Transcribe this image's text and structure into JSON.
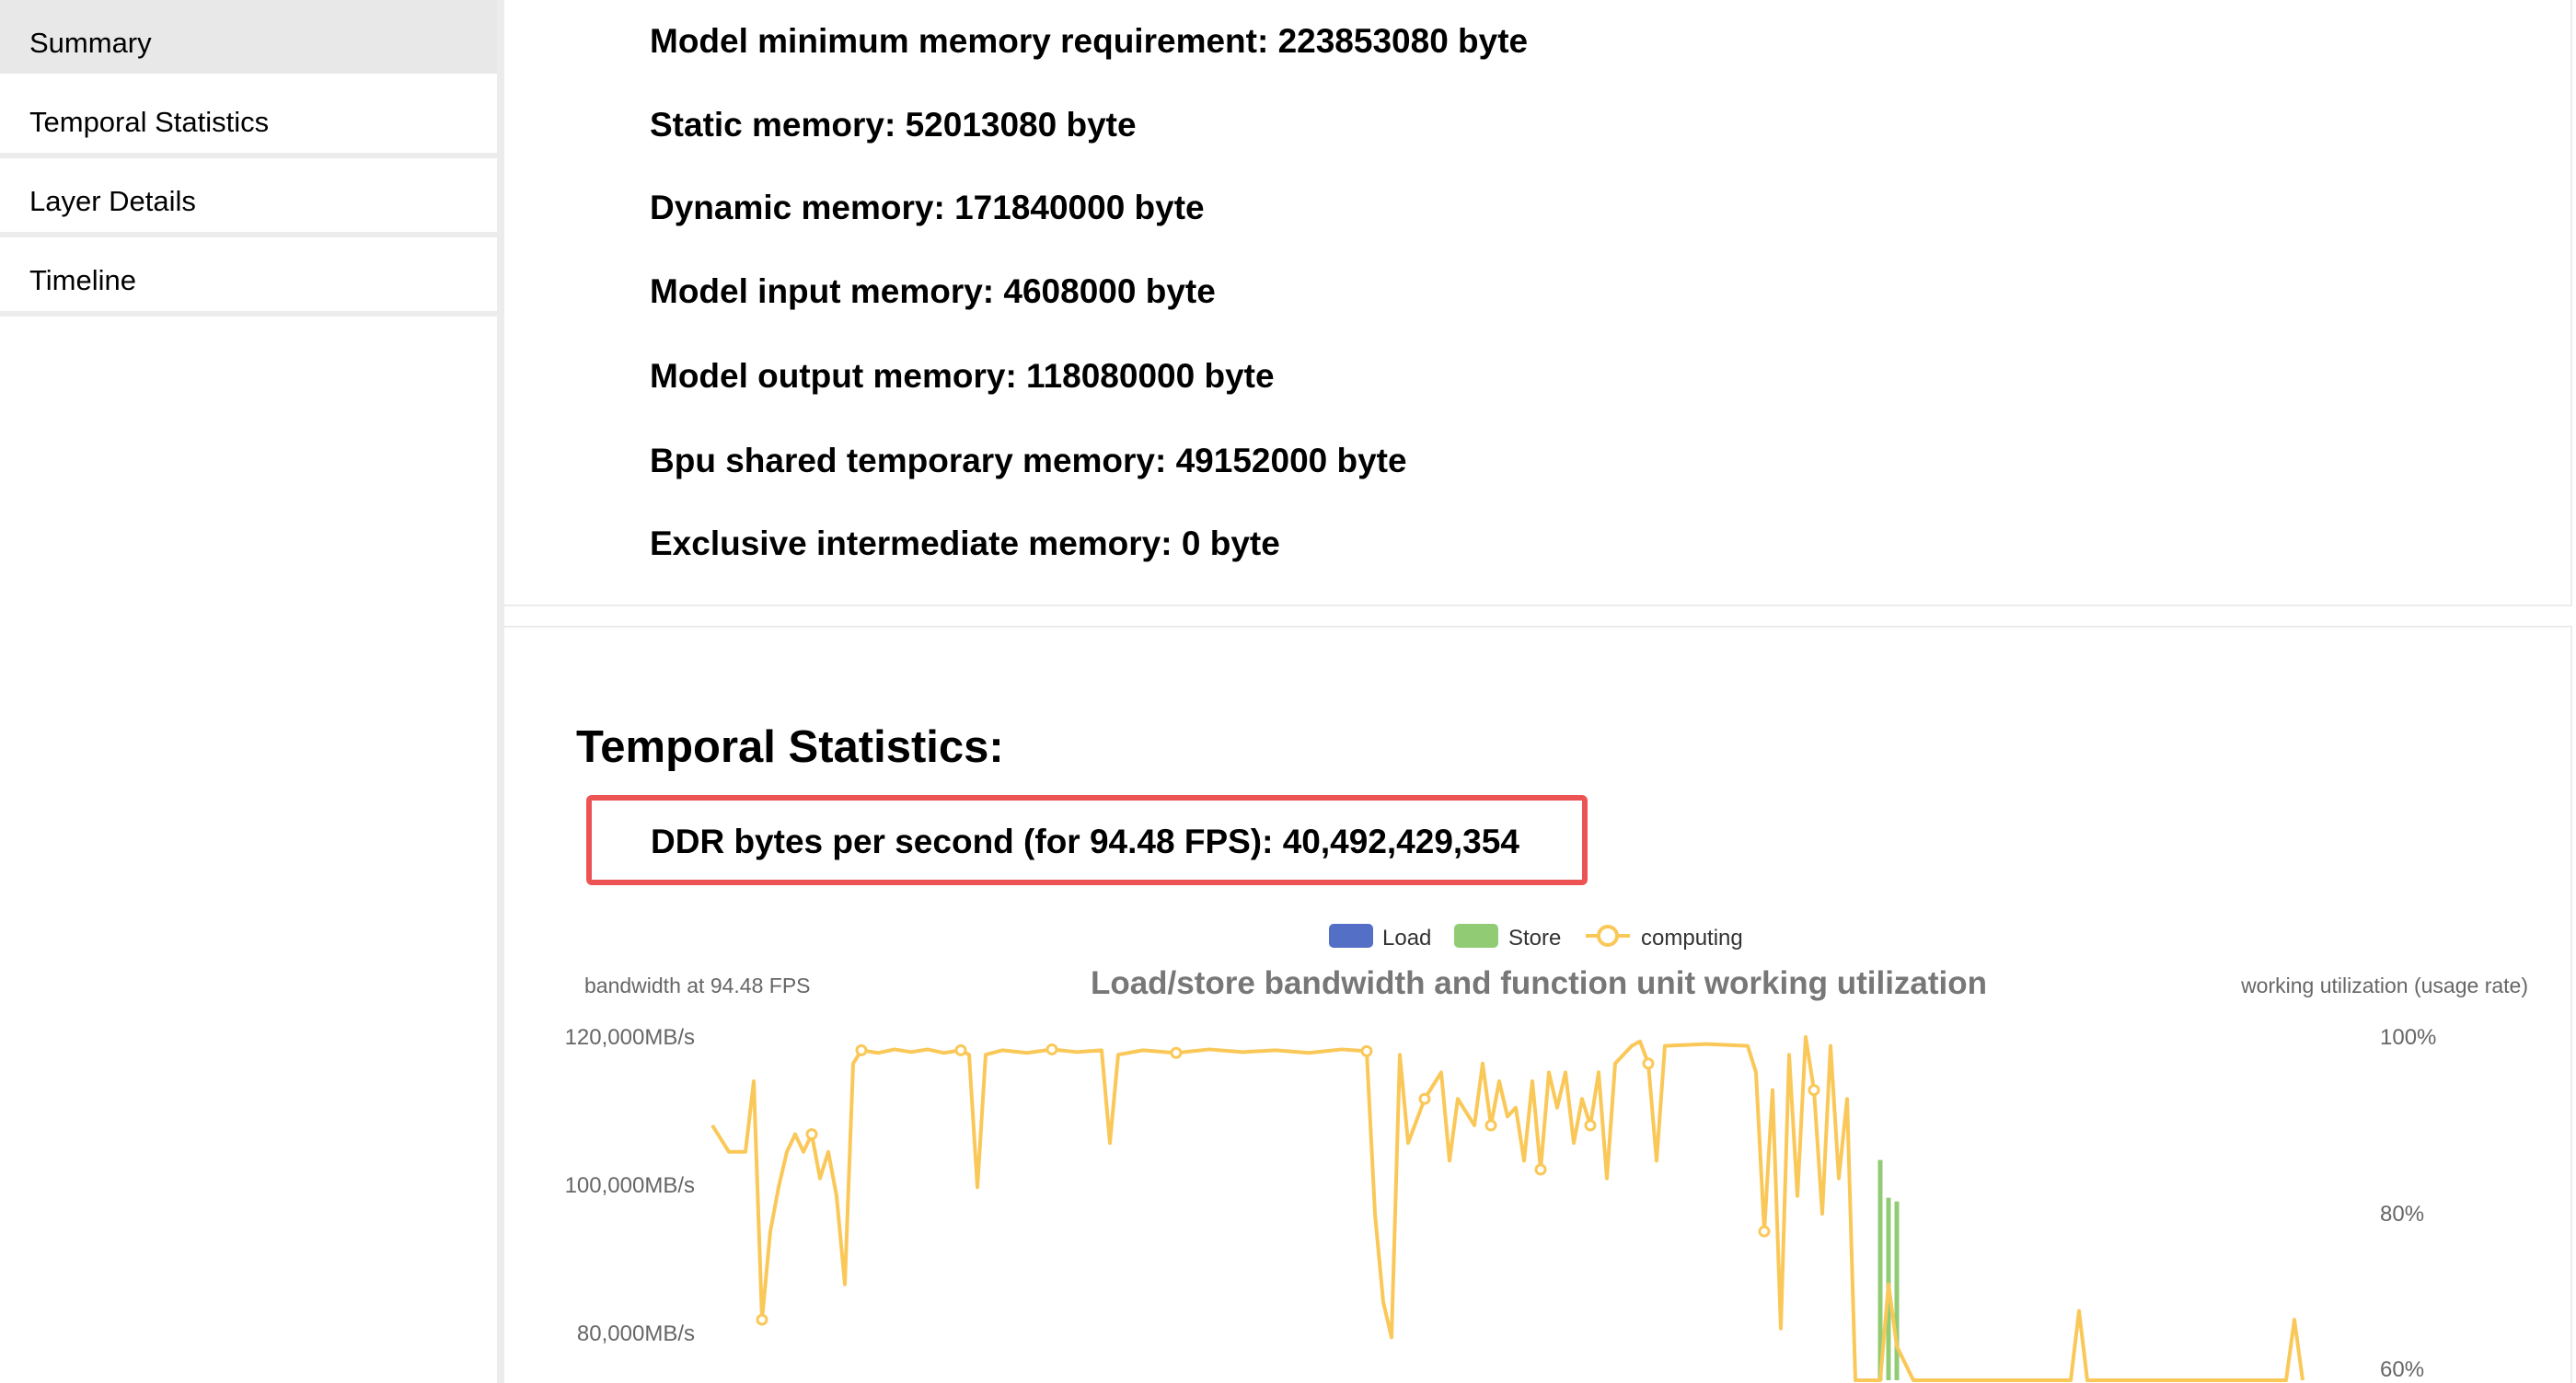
{
  "sidebar": {
    "items": [
      {
        "label": "Summary",
        "active": true
      },
      {
        "label": "Temporal Statistics"
      },
      {
        "label": "Layer Details"
      },
      {
        "label": "Timeline"
      }
    ]
  },
  "summary": {
    "lines": [
      "Model minimum memory requirement: 223853080 byte",
      "Static memory: 52013080 byte",
      "Dynamic memory: 171840000 byte",
      "Model input memory: 4608000 byte",
      "Model output memory: 118080000 byte",
      "Bpu shared temporary memory: 49152000 byte",
      "Exclusive intermediate memory: 0 byte"
    ]
  },
  "temporal": {
    "title": "Temporal Statistics:",
    "ddr_text": "DDR bytes per second (for 94.48 FPS): 40,492,429,354",
    "highlight_color": "#ec5454"
  },
  "chart_data": {
    "type": "bar+line",
    "title": "Load/store bandwidth and function unit working utilization",
    "ylabel_left": "bandwidth at 94.48 FPS",
    "ylabel_right": "working utilization (usage rate)",
    "left_ticks": [
      "120,000MB/s",
      "100,000MB/s",
      "80,000MB/s"
    ],
    "right_ticks": [
      "100%",
      "80%",
      "60%"
    ],
    "left_range": [
      80000,
      120000
    ],
    "right_range": [
      60,
      100
    ],
    "legend": [
      {
        "name": "Load",
        "color": "#5470c6"
      },
      {
        "name": "Store",
        "color": "#91cc75"
      },
      {
        "name": "computing",
        "color": "#fac858"
      }
    ],
    "store": {
      "x": [
        141,
        142,
        143
      ],
      "values": [
        103400,
        98300,
        97800
      ]
    },
    "computing": {
      "points": [
        [
          0,
          90
        ],
        [
          2,
          87
        ],
        [
          4,
          87
        ],
        [
          5,
          95
        ],
        [
          6,
          68
        ],
        [
          7,
          78
        ],
        [
          8,
          83
        ],
        [
          9,
          87
        ],
        [
          10,
          89
        ],
        [
          11,
          87
        ],
        [
          12,
          89
        ],
        [
          13,
          84
        ],
        [
          14,
          87
        ],
        [
          15,
          82
        ],
        [
          16,
          72
        ],
        [
          17,
          97
        ],
        [
          18,
          98.5
        ],
        [
          20,
          98.2
        ],
        [
          22,
          98.6
        ],
        [
          24,
          98.3
        ],
        [
          26,
          98.6
        ],
        [
          28,
          98.2
        ],
        [
          30,
          98.5
        ],
        [
          31,
          98
        ],
        [
          32,
          83
        ],
        [
          33,
          98
        ],
        [
          35,
          98.5
        ],
        [
          38,
          98.2
        ],
        [
          41,
          98.6
        ],
        [
          44,
          98.3
        ],
        [
          47,
          98.5
        ],
        [
          48,
          88
        ],
        [
          49,
          98
        ],
        [
          52,
          98.5
        ],
        [
          56,
          98.2
        ],
        [
          60,
          98.6
        ],
        [
          64,
          98.3
        ],
        [
          68,
          98.5
        ],
        [
          72,
          98.2
        ],
        [
          76,
          98.6
        ],
        [
          79,
          98.4
        ],
        [
          80,
          80
        ],
        [
          81,
          70
        ],
        [
          82,
          66
        ],
        [
          83,
          98
        ],
        [
          84,
          88
        ],
        [
          86,
          93
        ],
        [
          88,
          96
        ],
        [
          89,
          86
        ],
        [
          90,
          93
        ],
        [
          92,
          90
        ],
        [
          93,
          97
        ],
        [
          94,
          90
        ],
        [
          95,
          95
        ],
        [
          96,
          91
        ],
        [
          97,
          92
        ],
        [
          98,
          86
        ],
        [
          99,
          95
        ],
        [
          100,
          85
        ],
        [
          101,
          96
        ],
        [
          102,
          92
        ],
        [
          103,
          96
        ],
        [
          104,
          88
        ],
        [
          105,
          93
        ],
        [
          106,
          90
        ],
        [
          107,
          96
        ],
        [
          108,
          84
        ],
        [
          109,
          97
        ],
        [
          111,
          99
        ],
        [
          112,
          99.5
        ],
        [
          113,
          97
        ],
        [
          114,
          86
        ],
        [
          115,
          99
        ],
        [
          120,
          99.2
        ],
        [
          125,
          99
        ],
        [
          126,
          96
        ],
        [
          127,
          78
        ],
        [
          128,
          94
        ],
        [
          129,
          67
        ],
        [
          130,
          98
        ],
        [
          131,
          82
        ],
        [
          132,
          100
        ],
        [
          133,
          94
        ],
        [
          134,
          80
        ],
        [
          135,
          99
        ],
        [
          136,
          84
        ],
        [
          137,
          93
        ],
        [
          138,
          50
        ],
        [
          141,
          60
        ],
        [
          142,
          72
        ],
        [
          143,
          65
        ],
        [
          145,
          50
        ],
        [
          164,
          50
        ],
        [
          165,
          69
        ],
        [
          166,
          50
        ],
        [
          190,
          50
        ],
        [
          191,
          68
        ],
        [
          192,
          50
        ]
      ]
    }
  }
}
